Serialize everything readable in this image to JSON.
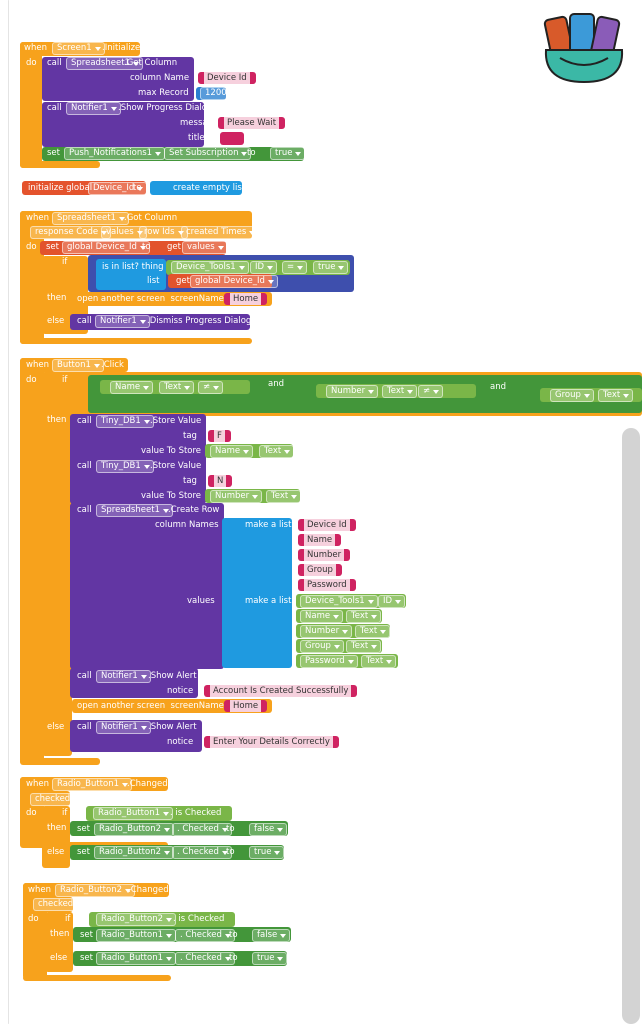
{
  "blocks": [
    {
      "texts": [
        "when",
        "Screen1",
        ".Initialize",
        "do",
        "call",
        "Spreadsheet1",
        ".Get Column",
        "column Name",
        "Device Id",
        "max Record",
        "1200",
        "call",
        "Notifier1",
        ".Show Progress Dialog",
        "message",
        "Please Wait",
        "title",
        "set",
        "Push_Notifications1",
        "Set Subscription",
        "to",
        "true"
      ]
    },
    {
      "texts": [
        "initialize global",
        "Device_Id",
        "to",
        "create empty list"
      ]
    },
    {
      "texts": [
        "when",
        "Spreadsheet1",
        ".Got Column",
        "response Code",
        "values",
        "row Ids",
        "created Times",
        "do",
        "set",
        "global Device_Id",
        "to",
        "get",
        "values",
        "if",
        "is in list? thing",
        "Device_Tools1",
        "ID",
        "=",
        "true",
        "list",
        "get",
        "global Device_Id",
        "then",
        "open another screen  screenName",
        "Home",
        "else",
        "call",
        "Notifier1",
        ".Dismiss Progress Dialog"
      ]
    },
    {
      "texts": [
        "when",
        "Button1",
        ".Click",
        "do",
        "if",
        "Name",
        "Text",
        "≠",
        "and",
        "Number",
        "Text",
        "≠",
        "and",
        "Group",
        "Text",
        "then",
        "call",
        "Tiny_DB1",
        ".Store Value",
        "tag",
        "F",
        "value To Store",
        "Name",
        "Text",
        "call",
        "Tiny_DB1",
        ".Store Value",
        "tag",
        "N",
        "value To Store",
        "Number",
        "Text",
        "call",
        "Spreadsheet1",
        ".Create Row",
        "column Names",
        "make a list",
        "Device Id",
        "Name",
        "Number",
        "Group",
        "Password",
        "values",
        "make a list",
        "Device_Tools1",
        "ID",
        "Name",
        "Text",
        "Number",
        "Text",
        "Group",
        "Text",
        "Password",
        "Text",
        "call",
        "Notifier1",
        ".Show Alert",
        "notice",
        "Account Is Created Successfully",
        "open another screen  screenName",
        "Home",
        "else",
        "call",
        "Notifier1",
        ".Show Alert",
        "notice",
        "Enter Your Details Correctly"
      ]
    },
    {
      "texts": [
        "when",
        "Radio_Button1",
        ".Changed",
        "checked",
        "do",
        "if",
        "Radio_Button1",
        ". is Checked",
        "then",
        "set",
        "Radio_Button2",
        ". Checked",
        "to",
        "false",
        "else",
        "set",
        "Radio_Button2",
        ". Checked",
        "to",
        "true"
      ]
    },
    {
      "texts": [
        "when",
        "Radio_Button2",
        ".Changed",
        "checked",
        "do",
        "if",
        "Radio_Button2",
        ". is Checked",
        "then",
        "set",
        "Radio_Button1",
        ". Checked",
        "to",
        "false",
        "else",
        "set",
        "Radio_Button1",
        ". Checked",
        "to",
        "true"
      ]
    }
  ]
}
